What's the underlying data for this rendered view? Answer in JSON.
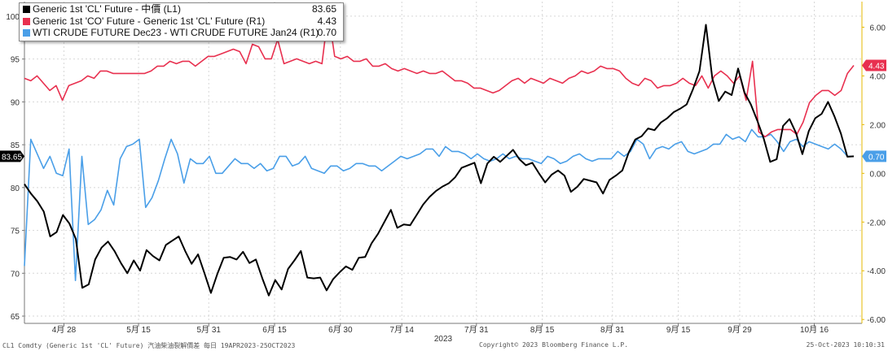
{
  "legend": [
    {
      "label": "Generic 1st 'CL' Future - 中價 (L1)",
      "value": "83.65",
      "color": "#000000"
    },
    {
      "label": "Generic 1st 'CO' Future - Generic 1st 'CL' Future (R1)",
      "value": "4.43",
      "color": "#e8304f"
    },
    {
      "label": "WTI CRUDE FUTURE Dec23 - WTI CRUDE FUTURE Jan24 (R1)",
      "value": "0.70",
      "color": "#4a9fe8"
    }
  ],
  "footer": {
    "left": "CL1 Comdty (Generic 1st 'CL' Future) 汽油柴油裂解價差  每日 19APR2023-25OCT2023",
    "center": "Copyright© 2023 Bloomberg Finance L.P.",
    "right": "25-Oct-2023 10:10:31"
  },
  "chart_data": {
    "type": "line",
    "xlabel": "2023",
    "x_range": [
      "2023-04-19",
      "2023-10-25"
    ],
    "x_ticks": [
      "4月 28",
      "5月 15",
      "5月 31",
      "6月 15",
      "6月 30",
      "7月 14",
      "7月 31",
      "8月 15",
      "8月 31",
      "9月 15",
      "9月 29",
      "10月 16"
    ],
    "y_left": {
      "range": [
        65,
        100
      ],
      "ticks": [
        "65",
        "70",
        "75",
        "80",
        "85",
        "90",
        "95",
        "100"
      ]
    },
    "y_right": {
      "range": [
        -6,
        7
      ],
      "ticks": [
        "-6.00",
        "-4.00",
        "-2.00",
        "0.00",
        "2.00",
        "4.00",
        "6.00"
      ]
    },
    "last_value_tags": [
      {
        "text": "83.65",
        "axis": "left",
        "value": 83.65,
        "color": "#000000"
      },
      {
        "text": "4.43",
        "axis": "right",
        "value": 4.43,
        "color": "#e8304f"
      },
      {
        "text": "0.70",
        "axis": "right",
        "value": 0.7,
        "color": "#4a9fe8"
      }
    ],
    "series": [
      {
        "name": "Generic 1st 'CL' Future - 中價 (L1)",
        "axis": "left",
        "color": "#000000",
        "values": [
          80.4,
          79.3,
          78.4,
          77.2,
          74.3,
          74.8,
          76.8,
          75.8,
          74.0,
          68.3,
          68.7,
          71.6,
          73.0,
          73.7,
          72.6,
          71.2,
          70.0,
          71.5,
          70.3,
          72.7,
          72.0,
          71.5,
          73.3,
          73.8,
          74.3,
          72.6,
          71.1,
          72.2,
          70.0,
          67.7,
          69.9,
          71.8,
          71.9,
          71.6,
          72.5,
          71.2,
          71.6,
          69.4,
          67.4,
          69.2,
          68.1,
          70.5,
          71.5,
          72.6,
          69.5,
          69.4,
          69.5,
          68.0,
          69.3,
          70.1,
          70.8,
          70.4,
          71.8,
          71.9,
          73.5,
          74.6,
          76.0,
          77.4,
          75.3,
          75.7,
          75.6,
          76.8,
          78.0,
          78.9,
          79.6,
          80.1,
          80.5,
          81.2,
          82.3,
          82.6,
          82.9,
          80.5,
          82.8,
          83.6,
          83.0,
          83.7,
          84.4,
          83.3,
          82.6,
          82.9,
          81.7,
          80.6,
          81.5,
          82.0,
          81.4,
          79.5,
          80.1,
          81.0,
          80.8,
          80.6,
          79.3,
          80.9,
          81.4,
          82.0,
          84.1,
          85.6,
          86.0,
          86.9,
          86.7,
          87.6,
          88.1,
          88.8,
          89.2,
          89.7,
          91.5,
          93.6,
          99.0,
          92.7,
          90.1,
          91.2,
          90.8,
          93.9,
          91.1,
          89.7,
          87.8,
          85.7,
          83.0,
          83.3,
          87.2,
          88.0,
          86.4,
          83.9,
          86.6,
          88.1,
          88.6,
          90.0,
          88.3,
          86.3,
          83.6,
          83.65
        ]
      },
      {
        "name": "Generic 1st 'CO' Future - Generic 1st 'CL' Future (R1)",
        "axis": "right",
        "color": "#e8304f",
        "values": [
          3.9,
          3.8,
          4.0,
          3.7,
          3.4,
          3.6,
          3.0,
          3.6,
          3.7,
          3.8,
          4.0,
          3.9,
          4.2,
          4.2,
          4.1,
          4.1,
          4.1,
          4.1,
          4.1,
          4.1,
          4.2,
          4.4,
          4.4,
          4.6,
          4.5,
          4.6,
          4.6,
          4.4,
          4.6,
          4.8,
          4.8,
          4.9,
          5.0,
          5.1,
          5.0,
          4.5,
          5.3,
          5.2,
          4.7,
          4.7,
          5.5,
          4.5,
          4.6,
          4.7,
          4.6,
          4.5,
          4.6,
          4.5,
          6.6,
          4.8,
          4.7,
          4.8,
          4.6,
          4.6,
          4.7,
          4.4,
          4.4,
          4.5,
          4.3,
          4.2,
          4.3,
          4.2,
          4.1,
          4.2,
          4.1,
          4.1,
          4.2,
          4.0,
          3.8,
          3.8,
          3.7,
          3.5,
          3.5,
          3.4,
          3.3,
          3.4,
          3.6,
          3.8,
          3.9,
          3.7,
          3.9,
          3.8,
          3.7,
          3.9,
          3.8,
          3.7,
          3.9,
          4.0,
          4.2,
          4.1,
          4.2,
          4.4,
          4.3,
          4.3,
          4.2,
          3.9,
          3.7,
          3.6,
          3.9,
          3.8,
          3.5,
          3.6,
          3.6,
          3.7,
          3.9,
          3.7,
          3.6,
          4.0,
          3.5,
          4.0,
          4.2,
          4.0,
          3.7,
          4.0,
          3.0,
          4.6,
          1.7,
          1.5,
          1.7,
          1.8,
          1.8,
          1.8,
          1.6,
          2.1,
          2.9,
          3.2,
          3.4,
          3.4,
          3.2,
          3.4,
          4.1,
          4.43
        ]
      },
      {
        "name": "WTI CRUDE FUTURE Dec23 - WTI CRUDE FUTURE Jan24 (R1)",
        "axis": "right",
        "color": "#4a9fe8",
        "values": [
          -3.8,
          1.4,
          0.8,
          0.2,
          0.7,
          0.0,
          -0.1,
          1.0,
          -4.4,
          0.7,
          -2.1,
          -1.9,
          -1.5,
          -0.7,
          -1.3,
          0.6,
          1.1,
          1.2,
          1.4,
          -1.4,
          -1.0,
          -0.3,
          0.6,
          1.4,
          0.8,
          -0.4,
          0.6,
          0.4,
          0.4,
          0.7,
          0.0,
          0.0,
          0.3,
          0.6,
          0.4,
          0.4,
          0.2,
          0.4,
          0.1,
          0.2,
          0.7,
          0.7,
          0.3,
          0.4,
          0.7,
          0.2,
          0.1,
          0.0,
          0.3,
          0.3,
          0.1,
          0.2,
          0.4,
          0.4,
          0.3,
          0.3,
          0.1,
          0.3,
          0.5,
          0.7,
          0.6,
          0.7,
          0.8,
          1.0,
          1.0,
          0.7,
          1.1,
          0.9,
          0.9,
          0.8,
          0.6,
          0.8,
          0.6,
          0.5,
          0.6,
          0.8,
          0.6,
          0.7,
          0.6,
          0.6,
          0.5,
          0.4,
          0.7,
          0.6,
          0.4,
          0.5,
          0.7,
          0.8,
          0.6,
          0.5,
          0.6,
          0.6,
          0.6,
          0.9,
          0.7,
          0.9,
          1.4,
          1.2,
          0.6,
          1.0,
          1.1,
          1.0,
          1.2,
          1.3,
          0.9,
          0.8,
          0.9,
          1.0,
          1.2,
          1.2,
          1.6,
          1.4,
          1.5,
          1.3,
          1.8,
          1.5,
          1.5,
          1.6,
          1.3,
          0.9,
          1.3,
          1.4,
          1.1,
          1.3,
          1.2,
          1.1,
          1.0,
          1.2,
          1.0,
          0.7,
          0.7
        ]
      }
    ]
  }
}
